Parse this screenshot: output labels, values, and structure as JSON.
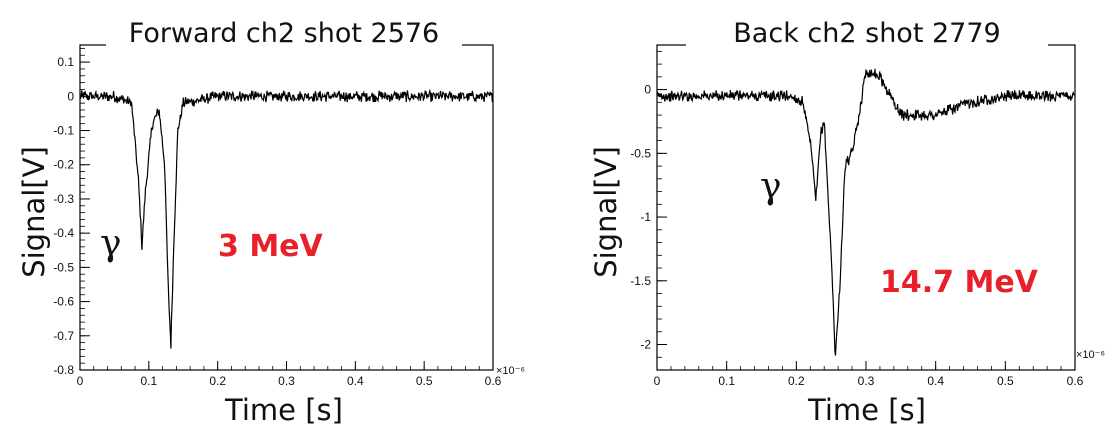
{
  "chart_data": [
    {
      "type": "line",
      "title": "Forward ch2 shot 2576",
      "xlabel": "Time [s]",
      "ylabel": "Signal[V]",
      "xlim": [
        0,
        0.6
      ],
      "ylim": [
        -0.8,
        0.15
      ],
      "x_ticks": [
        "0",
        "0.1",
        "0.2",
        "0.3",
        "0.4",
        "0.5",
        "0.6"
      ],
      "y_ticks": [
        "0.1",
        "0",
        "-0.1",
        "-0.2",
        "-0.3",
        "-0.4",
        "-0.5",
        "-0.6",
        "-0.7",
        "-0.8"
      ],
      "x_exponent": "×10⁻⁶",
      "annotation": "3 MeV",
      "annotation_color": "#e8202a",
      "gamma_label": "γ",
      "grid": false,
      "series": [
        {
          "x": [
            0,
            0.05,
            0.075,
            0.085,
            0.09,
            0.095,
            0.105,
            0.115,
            0.123,
            0.128,
            0.132,
            0.136,
            0.142,
            0.15,
            0.2,
            0.3,
            0.4,
            0.5,
            0.6
          ],
          "y": [
            0,
            0,
            -0.02,
            -0.25,
            -0.44,
            -0.28,
            -0.08,
            -0.04,
            -0.2,
            -0.55,
            -0.73,
            -0.45,
            -0.1,
            -0.02,
            0,
            0,
            0,
            0,
            0
          ]
        }
      ]
    },
    {
      "type": "line",
      "title": "Back ch2 shot 2779",
      "xlabel": "Time [s]",
      "ylabel": "Signal[V]",
      "xlim": [
        0,
        0.6
      ],
      "ylim": [
        -2.2,
        0.35
      ],
      "x_ticks": [
        "0",
        "0.1",
        "0.2",
        "0.3",
        "0.4",
        "0.5",
        "0.6"
      ],
      "y_ticks": [
        "0",
        "-0.5",
        "-1",
        "-1.5",
        "-2"
      ],
      "x_exponent": "×10⁻⁶",
      "annotation": "14.7 MeV",
      "annotation_color": "#e8202a",
      "gamma_label": "γ",
      "grid": false,
      "series": [
        {
          "x": [
            0,
            0.15,
            0.19,
            0.21,
            0.222,
            0.228,
            0.235,
            0.24,
            0.25,
            0.256,
            0.262,
            0.27,
            0.28,
            0.29,
            0.3,
            0.32,
            0.35,
            0.4,
            0.45,
            0.5,
            0.6
          ],
          "y": [
            -0.05,
            -0.05,
            -0.05,
            -0.1,
            -0.5,
            -0.88,
            -0.35,
            -0.25,
            -1.3,
            -2.1,
            -1.6,
            -0.6,
            -0.5,
            -0.2,
            0.15,
            0.1,
            -0.2,
            -0.2,
            -0.1,
            -0.05,
            -0.05
          ]
        }
      ]
    }
  ]
}
